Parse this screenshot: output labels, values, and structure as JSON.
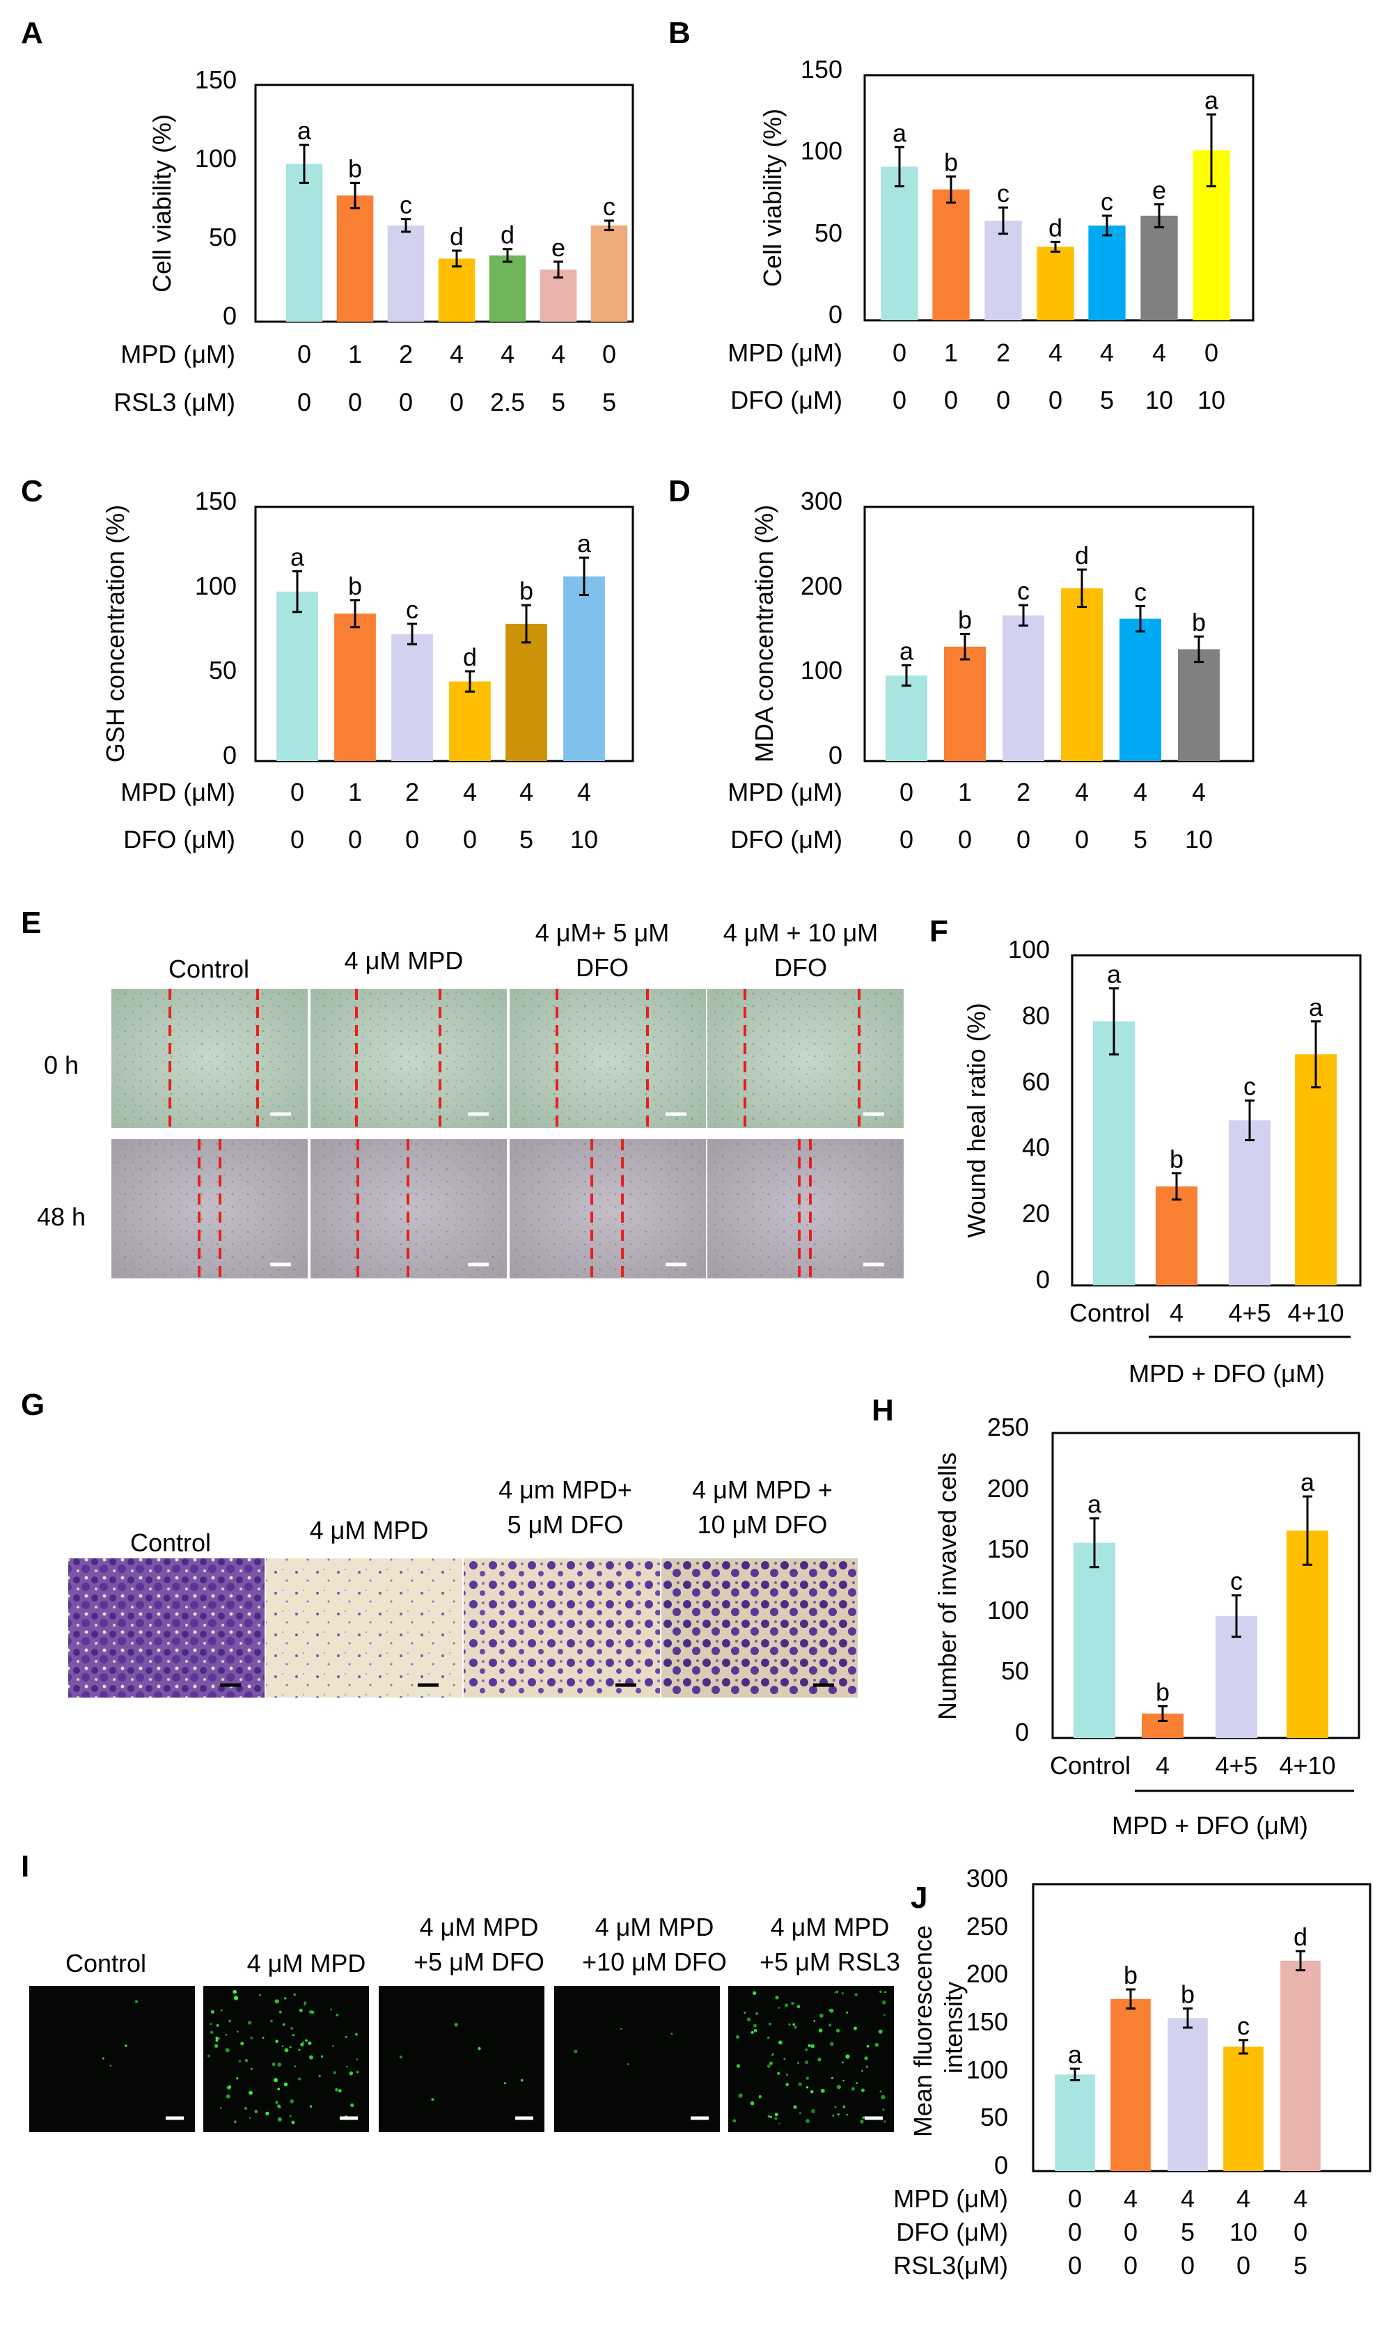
{
  "panels": {
    "A": {
      "letter": "A",
      "tick_labels": [
        "0",
        "50",
        "100",
        "150"
      ]
    },
    "B": {
      "letter": "B",
      "tick_labels": [
        "0",
        "50",
        "100",
        "150"
      ]
    },
    "C": {
      "letter": "C",
      "tick_labels": [
        "0",
        "50",
        "100",
        "150"
      ]
    },
    "D": {
      "letter": "D",
      "tick_labels": [
        "0",
        "100",
        "200",
        "300"
      ]
    },
    "E": {
      "letter": "E",
      "headers": [
        "Control",
        "4 μM MPD",
        "4 μM+ 5 μM",
        "DFO",
        "4 μM + 10 μM",
        "DFO"
      ],
      "rows": [
        "0 h",
        "48 h"
      ]
    },
    "F": {
      "letter": "F",
      "tick_labels": [
        "0",
        "20",
        "40",
        "60",
        "80",
        "100"
      ]
    },
    "G": {
      "letter": "G",
      "headers": [
        "Control",
        "4 μM MPD",
        "4 μm MPD+",
        "5 μM DFO",
        "4 μM MPD +",
        "10 μM DFO"
      ]
    },
    "H": {
      "letter": "H",
      "tick_labels": [
        "0",
        "50",
        "100",
        "150",
        "200",
        "250"
      ]
    },
    "I": {
      "letter": "I",
      "headers": [
        "Control",
        "4 μM MPD",
        "4 μM MPD",
        "+5 μM DFO",
        "4 μM MPD",
        "+10 μM DFO",
        "4 μM MPD",
        "+5 μM RSL3"
      ]
    },
    "J": {
      "letter": "J",
      "tick_labels": [
        "0",
        "50",
        "100",
        "150",
        "200",
        "250",
        "300"
      ]
    }
  },
  "chart_data": [
    {
      "id": "A",
      "type": "bar",
      "ylabel": "Cell viability (%)",
      "ylim": [
        0,
        150
      ],
      "values": [
        100,
        80,
        61,
        40,
        42,
        33,
        61
      ],
      "errors": [
        12,
        8,
        4,
        5,
        4,
        5,
        3
      ],
      "letters": [
        "a",
        "b",
        "c",
        "d",
        "d",
        "e",
        "c"
      ],
      "colors": [
        "#a8e4e0",
        "#f97f32",
        "#d2d2f0",
        "#ffbe00",
        "#6fb55a",
        "#e9b3ae",
        "#eeaa78"
      ],
      "rows": [
        {
          "label": "MPD (μM)",
          "values": [
            "0",
            "1",
            "2",
            "4",
            "4",
            "4",
            "0"
          ]
        },
        {
          "label": "RSL3 (μM)",
          "values": [
            "0",
            "0",
            "0",
            "0",
            "2.5",
            "5",
            "5"
          ]
        }
      ]
    },
    {
      "id": "B",
      "type": "bar",
      "ylabel": "Cell viability (%)",
      "ylim": [
        0,
        150
      ],
      "values": [
        94,
        80,
        61,
        45,
        58,
        64,
        104
      ],
      "errors": [
        12,
        8,
        8,
        3,
        6,
        7,
        22
      ],
      "letters": [
        "a",
        "b",
        "c",
        "d",
        "c",
        "e",
        "a"
      ],
      "colors": [
        "#a8e4e0",
        "#f97f32",
        "#d2d2f0",
        "#ffbe00",
        "#00aaf2",
        "#808080",
        "#ffff00"
      ],
      "rows": [
        {
          "label": "MPD (μM)",
          "values": [
            "0",
            "1",
            "2",
            "4",
            "4",
            "4",
            "0"
          ]
        },
        {
          "label": "DFO (μM)",
          "values": [
            "0",
            "0",
            "0",
            "0",
            "5",
            "10",
            "10"
          ]
        }
      ]
    },
    {
      "id": "C",
      "type": "bar",
      "ylabel": "GSH concentration (%)",
      "ylim": [
        0,
        150
      ],
      "values": [
        100,
        87,
        75,
        47,
        81,
        109
      ],
      "errors": [
        12,
        8,
        6,
        6,
        11,
        11
      ],
      "letters": [
        "a",
        "b",
        "c",
        "d",
        "b",
        "a"
      ],
      "colors": [
        "#a8e4e0",
        "#f97f32",
        "#d2d2f0",
        "#ffbe00",
        "#cc9208",
        "#7fc1ea"
      ],
      "rows": [
        {
          "label": "MPD (μM)",
          "values": [
            "0",
            "1",
            "2",
            "4",
            "4",
            "4"
          ]
        },
        {
          "label": "DFO (μM)",
          "values": [
            "0",
            "0",
            "0",
            "0",
            "5",
            "10"
          ]
        }
      ]
    },
    {
      "id": "D",
      "type": "bar",
      "ylabel": "MDA concentration (%)",
      "ylim": [
        0,
        300
      ],
      "values": [
        101,
        135,
        172,
        204,
        168,
        132
      ],
      "errors": [
        12,
        15,
        12,
        22,
        15,
        15
      ],
      "letters": [
        "a",
        "b",
        "c",
        "d",
        "c",
        "b"
      ],
      "colors": [
        "#a8e4e0",
        "#f97f32",
        "#d2d2f0",
        "#ffbe00",
        "#00aaf2",
        "#808080"
      ],
      "rows": [
        {
          "label": "MPD (μM)",
          "values": [
            "0",
            "1",
            "2",
            "4",
            "4",
            "4"
          ]
        },
        {
          "label": "DFO (μM)",
          "values": [
            "0",
            "0",
            "0",
            "0",
            "5",
            "10"
          ]
        }
      ]
    },
    {
      "id": "F",
      "type": "bar",
      "ylabel": "Wound heal ratio (%)",
      "ylim": [
        0,
        100
      ],
      "categories": [
        "Control",
        "4",
        "4+5",
        "4+10"
      ],
      "xlabel": "MPD + DFO (μM)",
      "values": [
        80,
        30,
        50,
        70
      ],
      "errors": [
        10,
        4,
        6,
        10
      ],
      "letters": [
        "a",
        "b",
        "c",
        "a"
      ],
      "colors": [
        "#a8e4e0",
        "#f97f32",
        "#d2d2f0",
        "#ffbe00"
      ]
    },
    {
      "id": "H",
      "type": "bar",
      "ylabel": "Number of invaved cells",
      "ylim": [
        0,
        250
      ],
      "categories": [
        "Control",
        "4",
        "4+5",
        "4+10"
      ],
      "xlabel": "MPD + DFO (μM)",
      "values": [
        160,
        20,
        100,
        170
      ],
      "errors": [
        20,
        6,
        17,
        28
      ],
      "letters": [
        "a",
        "b",
        "c",
        "a"
      ],
      "colors": [
        "#a8e4e0",
        "#f97f32",
        "#d2d2f0",
        "#ffbe00"
      ]
    },
    {
      "id": "J",
      "type": "bar",
      "ylabel": "Mean fluorescence intensity",
      "ylim": [
        0,
        300
      ],
      "values": [
        101,
        180,
        160,
        130,
        220
      ],
      "errors": [
        6,
        10,
        10,
        7,
        10
      ],
      "letters": [
        "a",
        "b",
        "b",
        "c",
        "d"
      ],
      "colors": [
        "#a8e4e0",
        "#f97f32",
        "#d2d2f0",
        "#ffbe00",
        "#e9b3ae"
      ],
      "rows": [
        {
          "label": "MPD (μM)",
          "values": [
            "0",
            "4",
            "4",
            "4",
            "4"
          ]
        },
        {
          "label": "DFO (μM)",
          "values": [
            "0",
            "0",
            "5",
            "10",
            "0"
          ]
        },
        {
          "label": "RSL3(μM)",
          "values": [
            "0",
            "0",
            "0",
            "0",
            "5"
          ]
        }
      ]
    }
  ]
}
